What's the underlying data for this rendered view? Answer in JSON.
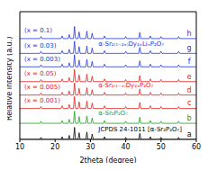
{
  "chart_data": {
    "type": "line",
    "x_label": "2theta (degree)",
    "y_label": "Relative intensity (a.u.)",
    "x": [
      10,
      15.7,
      16,
      16.3,
      21.7,
      22,
      22.3,
      23.7,
      24,
      24.3,
      25.2,
      25.5,
      25.8,
      26.5,
      26.8,
      27.1,
      28.7,
      29,
      29.3,
      30.2,
      30.5,
      30.8,
      33.7,
      34,
      34.3,
      39.7,
      40,
      40.3,
      43.7,
      44,
      44.3,
      46.7,
      47,
      47.3,
      49.7,
      50,
      50.3,
      54.7,
      55,
      55.3,
      60
    ],
    "xlim": [
      10,
      60
    ],
    "xticks": [
      10,
      20,
      30,
      40,
      50,
      60
    ],
    "ylim": [
      0,
      9.5
    ],
    "tick_labels": "x",
    "series": [
      {
        "name": "h",
        "color": "#2336d8",
        "label": "(x = 0.1)",
        "values": [
          7.5,
          7.5,
          7.65,
          7.5,
          7.5,
          7.7,
          7.5,
          7.5,
          7.8,
          7.5,
          7.5,
          8.4,
          7.5,
          7.5,
          8.0,
          7.5,
          7.5,
          8.05,
          7.5,
          7.5,
          7.9,
          7.5,
          7.5,
          7.7,
          7.5,
          7.5,
          7.65,
          7.5,
          7.5,
          7.95,
          7.5,
          7.5,
          7.7,
          7.5,
          7.5,
          7.65,
          7.5,
          7.5,
          7.65,
          7.5,
          7.5
        ]
      },
      {
        "name": "g",
        "color": "#2336d8",
        "label": "(x = 0.03)",
        "group": "α-Sr₂₍₁₋₂ₓ₎Dy₂ₓLiₓP₂O₇",
        "values": [
          6.4,
          6.4,
          6.55,
          6.4,
          6.4,
          6.6,
          6.4,
          6.4,
          6.7,
          6.4,
          6.4,
          7.3,
          6.4,
          6.4,
          6.9,
          6.4,
          6.4,
          6.95,
          6.4,
          6.4,
          6.8,
          6.4,
          6.4,
          6.6,
          6.4,
          6.4,
          6.55,
          6.4,
          6.4,
          6.85,
          6.4,
          6.4,
          6.6,
          6.4,
          6.4,
          6.55,
          6.4,
          6.4,
          6.55,
          6.4,
          6.4
        ]
      },
      {
        "name": "f",
        "color": "#2336d8",
        "label": "(x = 0.003)",
        "values": [
          5.4,
          5.4,
          5.55,
          5.4,
          5.4,
          5.6,
          5.4,
          5.4,
          5.7,
          5.4,
          5.4,
          6.3,
          5.4,
          5.4,
          5.9,
          5.4,
          5.4,
          5.95,
          5.4,
          5.4,
          5.8,
          5.4,
          5.4,
          5.6,
          5.4,
          5.4,
          5.55,
          5.4,
          5.4,
          5.85,
          5.4,
          5.4,
          5.6,
          5.4,
          5.4,
          5.55,
          5.4,
          5.4,
          5.55,
          5.4,
          5.4
        ]
      },
      {
        "name": "e",
        "color": "#e0201b",
        "label": "(x = 0.05)",
        "values": [
          4.3,
          4.3,
          4.45,
          4.3,
          4.3,
          4.5,
          4.3,
          4.3,
          4.6,
          4.3,
          4.3,
          5.2,
          4.3,
          4.3,
          4.8,
          4.3,
          4.3,
          4.85,
          4.3,
          4.3,
          4.7,
          4.3,
          4.3,
          4.5,
          4.3,
          4.3,
          4.45,
          4.3,
          4.3,
          4.75,
          4.3,
          4.3,
          4.5,
          4.3,
          4.3,
          4.45,
          4.3,
          4.3,
          4.45,
          4.3,
          4.3
        ]
      },
      {
        "name": "d",
        "color": "#e0201b",
        "label": "(x = 0.005)",
        "group": "α-Sr₂₍₁₋ₓ₎Dy₂ₓP₂O₇",
        "values": [
          3.3,
          3.3,
          3.45,
          3.3,
          3.3,
          3.5,
          3.3,
          3.3,
          3.6,
          3.3,
          3.3,
          4.2,
          3.3,
          3.3,
          3.8,
          3.3,
          3.3,
          3.85,
          3.3,
          3.3,
          3.7,
          3.3,
          3.3,
          3.5,
          3.3,
          3.3,
          3.45,
          3.3,
          3.3,
          3.75,
          3.3,
          3.3,
          3.5,
          3.3,
          3.3,
          3.45,
          3.3,
          3.3,
          3.45,
          3.3,
          3.3
        ]
      },
      {
        "name": "c",
        "color": "#e0201b",
        "label": "(x = 0.001)",
        "values": [
          2.3,
          2.3,
          2.45,
          2.3,
          2.3,
          2.5,
          2.3,
          2.3,
          2.6,
          2.3,
          2.3,
          3.2,
          2.3,
          2.3,
          2.8,
          2.3,
          2.3,
          2.85,
          2.3,
          2.3,
          2.7,
          2.3,
          2.3,
          2.5,
          2.3,
          2.3,
          2.45,
          2.3,
          2.3,
          2.75,
          2.3,
          2.3,
          2.5,
          2.3,
          2.3,
          2.45,
          2.3,
          2.3,
          2.45,
          2.3,
          2.3
        ]
      },
      {
        "name": "b",
        "color": "#1a9e1a",
        "group": "α-Sr₂P₂O₇",
        "values": [
          1.2,
          1.2,
          1.35,
          1.2,
          1.2,
          1.4,
          1.2,
          1.2,
          1.5,
          1.2,
          1.2,
          2.1,
          1.2,
          1.2,
          1.7,
          1.2,
          1.2,
          1.75,
          1.2,
          1.2,
          1.6,
          1.2,
          1.2,
          1.4,
          1.2,
          1.2,
          1.35,
          1.2,
          1.2,
          1.65,
          1.2,
          1.2,
          1.4,
          1.2,
          1.2,
          1.35,
          1.2,
          1.2,
          1.35,
          1.2,
          1.2
        ]
      },
      {
        "name": "a",
        "color": "#000000",
        "group": "JCPDS 24-1011 [α-Sr₂P₂O₇]",
        "values": [
          0,
          0,
          0.15,
          0,
          0,
          0.2,
          0,
          0,
          0.3,
          0,
          0,
          0.9,
          0,
          0,
          0.5,
          0,
          0,
          0.55,
          0,
          0,
          0.4,
          0,
          0,
          0.2,
          0,
          0,
          0.15,
          0,
          0,
          0.45,
          0,
          0,
          0.2,
          0,
          0,
          0.15,
          0,
          0,
          0.15,
          0,
          0
        ]
      }
    ]
  }
}
